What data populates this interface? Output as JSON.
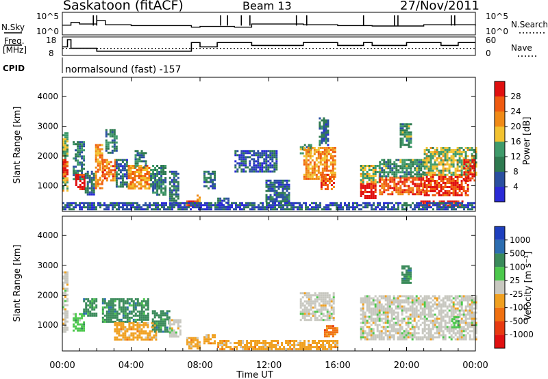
{
  "header": {
    "station": "Saskatoon (fitACF)",
    "beam": "Beam 13",
    "date": "27/Nov/2011"
  },
  "panel_labels": {
    "nsky": "N.Sky",
    "nsearch": "N.Search",
    "freq_line1": "Freq.",
    "freq_line2": "[MHz]",
    "nave": "Nave",
    "cpid": "CPID",
    "cpid_text": "normalsound (fast) -157"
  },
  "colors": {
    "power_scale": [
      "#2a2ad6",
      "#2a4fa0",
      "#2e7a50",
      "#3f9a6a",
      "#f2c230",
      "#f08a16",
      "#ef5a10",
      "#e01010"
    ],
    "velocity_scale": [
      "#1e3fbe",
      "#2c6db0",
      "#3a8a5a",
      "#4cc84c",
      "#c8c8c0",
      "#f0a020",
      "#f07010",
      "#e83a10",
      "#e01010"
    ]
  },
  "chart_data": [
    {
      "type": "line",
      "title": "Saskatoon (fitACF) Beam 13 27/Nov/2011",
      "left_axis_label": "N.Sky",
      "right_axis_label": "N.Search",
      "left_ticks": [
        "10^5",
        "10^0"
      ],
      "right_ticks": [
        "10^5",
        "10^0"
      ],
      "x_hours": [
        0,
        0.5,
        1,
        2,
        2.5,
        4,
        7.5,
        8,
        10,
        11,
        14,
        16,
        18,
        21,
        24
      ],
      "series": [
        {
          "name": "N.Sky",
          "values": [
            2.1,
            2.8,
            2.4,
            3.3,
            2.2,
            2.0,
            1.6,
            1.8,
            1.6,
            2.4,
            2.2,
            2.0,
            1.9,
            2.2,
            2.0
          ]
        }
      ]
    },
    {
      "type": "line",
      "left_axis_label": "Freq. [MHz]",
      "right_axis_label": "Nave",
      "left_ticks": [
        8,
        18
      ],
      "right_ticks": [
        0,
        60
      ],
      "freq_steps": [
        [
          0,
          13
        ],
        [
          0.3,
          18
        ],
        [
          0.5,
          12
        ],
        [
          2,
          10
        ],
        [
          7.5,
          16
        ],
        [
          8,
          13
        ],
        [
          9,
          16
        ],
        [
          10,
          16
        ],
        [
          11,
          14
        ],
        [
          14,
          16
        ],
        [
          16,
          14
        ],
        [
          17.5,
          16
        ],
        [
          18,
          14
        ],
        [
          20,
          16
        ],
        [
          22,
          14
        ],
        [
          23,
          16
        ],
        [
          24,
          16
        ]
      ],
      "nave_level": 12
    },
    {
      "type": "heatmap",
      "name": "Power",
      "xlabel": "",
      "ylabel": "Slant Range [km]",
      "xlim": [
        0,
        24
      ],
      "ylim": [
        180,
        4600
      ],
      "y_ticks": [
        1000,
        2000,
        3000,
        4000
      ],
      "colorbar": {
        "label": "Power [dB]",
        "ticks": [
          4,
          8,
          12,
          16,
          20,
          24,
          28
        ],
        "range": [
          0,
          32
        ]
      },
      "patches": [
        {
          "t": [
            0,
            0.3
          ],
          "r": [
            800,
            2800
          ],
          "v": 16
        },
        {
          "t": [
            0,
            0.25
          ],
          "r": [
            1300,
            1900
          ],
          "v": 28
        },
        {
          "t": [
            0.6,
            1.3
          ],
          "r": [
            1200,
            2500
          ],
          "v": 10
        },
        {
          "t": [
            0.75,
            1.3
          ],
          "r": [
            900,
            1400
          ],
          "v": 30
        },
        {
          "t": [
            1.3,
            1.8
          ],
          "r": [
            700,
            1500
          ],
          "v": 8
        },
        {
          "t": [
            1.9,
            2.3
          ],
          "r": [
            900,
            2400
          ],
          "v": 22
        },
        {
          "t": [
            2.3,
            3.1
          ],
          "r": [
            1200,
            1900
          ],
          "v": 24
        },
        {
          "t": [
            2.5,
            3.1
          ],
          "r": [
            2100,
            2900
          ],
          "v": 10
        },
        {
          "t": [
            3.1,
            3.8
          ],
          "r": [
            1000,
            1900
          ],
          "v": 8
        },
        {
          "t": [
            3.8,
            5.1
          ],
          "r": [
            900,
            1700
          ],
          "v": 22
        },
        {
          "t": [
            4.2,
            4.9
          ],
          "r": [
            1600,
            2200
          ],
          "v": 10
        },
        {
          "t": [
            5.1,
            6.0
          ],
          "r": [
            700,
            1700
          ],
          "v": 10
        },
        {
          "t": [
            6.2,
            6.7
          ],
          "r": [
            300,
            1500
          ],
          "v": 8
        },
        {
          "t": [
            7.2,
            7.8
          ],
          "r": [
            300,
            500
          ],
          "v": 30
        },
        {
          "t": [
            7.8,
            8.0
          ],
          "r": [
            300,
            700
          ],
          "v": 22
        },
        {
          "t": [
            8.2,
            8.8
          ],
          "r": [
            900,
            1500
          ],
          "v": 8
        },
        {
          "t": [
            9.0,
            9.7
          ],
          "r": [
            300,
            600
          ],
          "v": 8
        },
        {
          "t": [
            10.0,
            12.5
          ],
          "r": [
            1500,
            2200
          ],
          "v": 6
        },
        {
          "t": [
            11.8,
            13.2
          ],
          "r": [
            500,
            1200
          ],
          "v": 8
        },
        {
          "t": [
            13.8,
            14.4
          ],
          "r": [
            2100,
            2400
          ],
          "v": 12
        },
        {
          "t": [
            14.0,
            15.8
          ],
          "r": [
            1200,
            2300
          ],
          "v": 22
        },
        {
          "t": [
            15.0,
            15.8
          ],
          "r": [
            900,
            1400
          ],
          "v": 26
        },
        {
          "t": [
            14.9,
            15.4
          ],
          "r": [
            2400,
            3300
          ],
          "v": 8
        },
        {
          "t": [
            17.3,
            18.2
          ],
          "r": [
            600,
            1100
          ],
          "v": 30
        },
        {
          "t": [
            17.3,
            18.4
          ],
          "r": [
            1100,
            1700
          ],
          "v": 16
        },
        {
          "t": [
            18.4,
            21.0
          ],
          "r": [
            700,
            1300
          ],
          "v": 26
        },
        {
          "t": [
            18.4,
            21.0
          ],
          "r": [
            1300,
            1900
          ],
          "v": 12
        },
        {
          "t": [
            19.6,
            20.2
          ],
          "r": [
            2300,
            3100
          ],
          "v": 12
        },
        {
          "t": [
            20.8,
            23.2
          ],
          "r": [
            350,
            500
          ],
          "v": 30
        },
        {
          "t": [
            21.0,
            23.6
          ],
          "r": [
            700,
            1400
          ],
          "v": 28
        },
        {
          "t": [
            21.0,
            24.0
          ],
          "r": [
            1400,
            2300
          ],
          "v": 16
        },
        {
          "t": [
            23.3,
            24.0
          ],
          "r": [
            1200,
            1900
          ],
          "v": 30
        },
        {
          "t": [
            0.0,
            24.0
          ],
          "r": [
            200,
            450
          ],
          "v": 6
        }
      ]
    },
    {
      "type": "heatmap",
      "name": "Velocity",
      "xlabel": "Time UT",
      "ylabel": "Slant Range [km]",
      "xlim": [
        0,
        24
      ],
      "ylim": [
        180,
        4600
      ],
      "y_ticks": [
        1000,
        2000,
        3000,
        4000
      ],
      "x_tick_labels": [
        "00:00",
        "04:00",
        "08:00",
        "12:00",
        "16:00",
        "20:00",
        "00:00"
      ],
      "colorbar": {
        "label": "Velocity [m s⁻¹]",
        "ticks": [
          1000,
          500,
          100,
          25,
          -25,
          -100,
          -500,
          -1000
        ]
      },
      "patches": [
        {
          "t": [
            0,
            0.3
          ],
          "r": [
            800,
            2800
          ],
          "c": 4
        },
        {
          "t": [
            0.6,
            1.3
          ],
          "r": [
            800,
            1400
          ],
          "c": 3
        },
        {
          "t": [
            1.2,
            2.0
          ],
          "r": [
            1300,
            1900
          ],
          "c": 2
        },
        {
          "t": [
            2.3,
            5.0
          ],
          "r": [
            1100,
            1900
          ],
          "c": 2
        },
        {
          "t": [
            3.0,
            5.5
          ],
          "r": [
            500,
            1100
          ],
          "c": 5
        },
        {
          "t": [
            5.2,
            6.2
          ],
          "r": [
            800,
            1500
          ],
          "c": 2
        },
        {
          "t": [
            6.2,
            6.8
          ],
          "r": [
            600,
            1200
          ],
          "c": 4
        },
        {
          "t": [
            7.2,
            8.0
          ],
          "r": [
            200,
            600
          ],
          "c": 5
        },
        {
          "t": [
            8.2,
            8.8
          ],
          "r": [
            400,
            700
          ],
          "c": 5
        },
        {
          "t": [
            9.0,
            16.0
          ],
          "r": [
            200,
            500
          ],
          "c": 5
        },
        {
          "t": [
            13.8,
            15.8
          ],
          "r": [
            1200,
            2100
          ],
          "c": 4
        },
        {
          "t": [
            15.2,
            16.0
          ],
          "r": [
            600,
            1000
          ],
          "c": 6
        },
        {
          "t": [
            17.3,
            24.0
          ],
          "r": [
            500,
            2000
          ],
          "c": 4
        },
        {
          "t": [
            19.7,
            20.2
          ],
          "r": [
            2400,
            3000
          ],
          "c": 2
        },
        {
          "t": [
            22.6,
            23.0
          ],
          "r": [
            900,
            1300
          ],
          "c": 3
        }
      ]
    }
  ]
}
